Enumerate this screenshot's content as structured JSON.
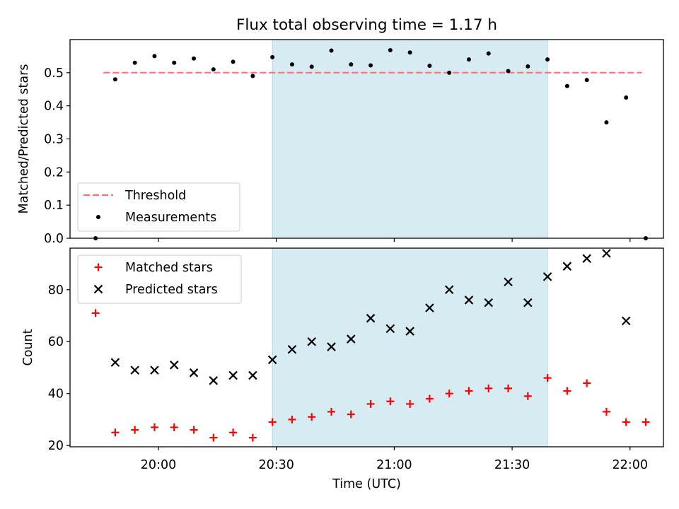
{
  "figure": {
    "title": "Flux total observing time = 1.17 h",
    "xlabel": "Time (UTC)",
    "x_ticks": [
      "20:00",
      "20:30",
      "21:00",
      "21:30",
      "22:00"
    ],
    "x_tick_minutes": [
      1200,
      1230,
      1260,
      1290,
      1320
    ],
    "highlight_span": [
      "20:29",
      "21:39"
    ],
    "highlight_color": "#add8e6"
  },
  "chart_data": [
    {
      "type": "scatter",
      "panel": "top",
      "ylabel": "Matched/Predicted stars",
      "ylim": [
        0,
        0.6
      ],
      "yticks": [
        "0.0",
        "0.1",
        "0.2",
        "0.3",
        "0.4",
        "0.5"
      ],
      "ytick_values": [
        0,
        0.1,
        0.2,
        0.3,
        0.4,
        0.5
      ],
      "legend_position": "lower-left",
      "threshold": {
        "name": "Threshold",
        "value": 0.5,
        "x_start": "19:46",
        "x_end": "22:03",
        "color": "#ff7070"
      },
      "series": [
        {
          "name": "Measurements",
          "color": "#000000",
          "x": [
            "19:44",
            "19:49",
            "19:54",
            "19:59",
            "20:04",
            "20:09",
            "20:14",
            "20:19",
            "20:24",
            "20:29",
            "20:34",
            "20:39",
            "20:44",
            "20:49",
            "20:54",
            "20:59",
            "21:04",
            "21:09",
            "21:14",
            "21:19",
            "21:24",
            "21:29",
            "21:34",
            "21:39",
            "21:44",
            "21:49",
            "21:54",
            "21:59",
            "22:04"
          ],
          "y": [
            0.0,
            0.48,
            0.53,
            0.55,
            0.53,
            0.543,
            0.51,
            0.533,
            0.49,
            0.547,
            0.525,
            0.518,
            0.567,
            0.525,
            0.522,
            0.568,
            0.561,
            0.521,
            0.5,
            0.54,
            0.558,
            0.505,
            0.519,
            0.54,
            0.46,
            0.478,
            0.35,
            0.425,
            0.0
          ]
        }
      ]
    },
    {
      "type": "scatter",
      "panel": "bottom",
      "ylabel": "Count",
      "ylim": [
        19.5,
        96
      ],
      "yticks": [
        "20",
        "40",
        "60",
        "80"
      ],
      "ytick_values": [
        20,
        40,
        60,
        80
      ],
      "legend_position": "upper-left",
      "series": [
        {
          "name": "Matched stars",
          "marker": "+",
          "color": "#ff0000",
          "x": [
            "19:44",
            "19:49",
            "19:54",
            "19:59",
            "20:04",
            "20:09",
            "20:14",
            "20:19",
            "20:24",
            "20:29",
            "20:34",
            "20:39",
            "20:44",
            "20:49",
            "20:54",
            "20:59",
            "21:04",
            "21:09",
            "21:14",
            "21:19",
            "21:24",
            "21:29",
            "21:34",
            "21:39",
            "21:44",
            "21:49",
            "21:54",
            "21:59",
            "22:04"
          ],
          "y": [
            71,
            25,
            26,
            27,
            27,
            26,
            23,
            25,
            23,
            29,
            30,
            31,
            33,
            32,
            36,
            37,
            36,
            38,
            40,
            41,
            42,
            42,
            39,
            46,
            41,
            44,
            33,
            29,
            29
          ]
        },
        {
          "name": "Predicted stars",
          "marker": "x",
          "color": "#000000",
          "x": [
            "19:49",
            "19:54",
            "19:59",
            "20:04",
            "20:09",
            "20:14",
            "20:19",
            "20:24",
            "20:29",
            "20:34",
            "20:39",
            "20:44",
            "20:49",
            "20:54",
            "20:59",
            "21:04",
            "21:09",
            "21:14",
            "21:19",
            "21:24",
            "21:29",
            "21:34",
            "21:39",
            "21:44",
            "21:49",
            "21:54",
            "21:59"
          ],
          "y": [
            52,
            49,
            49,
            51,
            48,
            45,
            47,
            47,
            53,
            57,
            60,
            58,
            61,
            69,
            65,
            64,
            73,
            80,
            76,
            75,
            83,
            75,
            85,
            89,
            92,
            94,
            68
          ]
        }
      ]
    }
  ]
}
